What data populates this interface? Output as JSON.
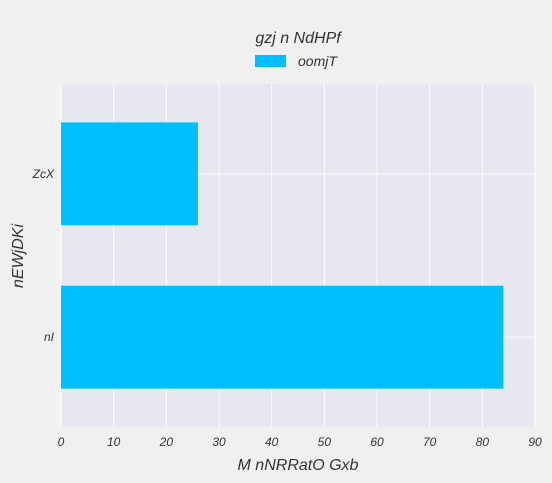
{
  "chart_data": {
    "type": "bar",
    "orientation": "horizontal",
    "title": "gzj n NdHPf",
    "xlabel": "M nNRRatO Gxb",
    "ylabel": "nEWjDKi",
    "categories": [
      "ZcX",
      "nI"
    ],
    "series": [
      {
        "name": "oomjT",
        "values": [
          26,
          84
        ],
        "color": "#00bfff"
      }
    ],
    "xlim": [
      0,
      90
    ],
    "xticks": [
      0,
      10,
      20,
      30,
      40,
      50,
      60,
      70,
      80,
      90
    ],
    "grid": true,
    "legend_position": "top-center",
    "plot_background": "#e6e7ef",
    "figure_background": "#f0f0f0"
  }
}
